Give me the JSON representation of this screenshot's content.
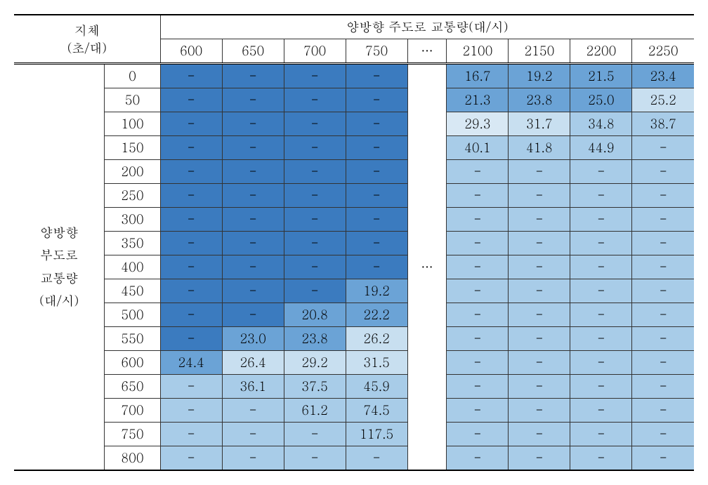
{
  "header": {
    "delay_label_line1": "지체",
    "delay_label_line2": "(초/대)",
    "main_road_label": "양방향 주도로 교통량(대/시)",
    "columns": [
      "600",
      "650",
      "700",
      "750",
      "…",
      "2100",
      "2150",
      "2200",
      "2250"
    ]
  },
  "side_label": {
    "line1": "양방향",
    "line2": "부도로",
    "line3": "교통량",
    "line4": "(대/시)"
  },
  "ellipsis": "…",
  "row_labels": [
    "0",
    "50",
    "100",
    "150",
    "200",
    "250",
    "300",
    "350",
    "400",
    "450",
    "500",
    "550",
    "600",
    "650",
    "700",
    "750",
    "800"
  ],
  "colors": {
    "dark_blue": "#3b7bbf",
    "mid_blue": "#6ba3d6",
    "light_blue": "#a8cce8",
    "lighter_blue": "#c8dff0",
    "pale_blue": "#d8e8f4",
    "very_light": "#e8f0f8",
    "white": "#ffffff"
  },
  "cells": [
    [
      {
        "v": "-",
        "c": "#3b7bbf"
      },
      {
        "v": "-",
        "c": "#3b7bbf"
      },
      {
        "v": "-",
        "c": "#3b7bbf"
      },
      {
        "v": "-",
        "c": "#3b7bbf"
      },
      {
        "v": "16.7",
        "c": "#6ba3d6"
      },
      {
        "v": "19.2",
        "c": "#6ba3d6"
      },
      {
        "v": "21.5",
        "c": "#6ba3d6"
      },
      {
        "v": "23.4",
        "c": "#6ba3d6"
      }
    ],
    [
      {
        "v": "-",
        "c": "#3b7bbf"
      },
      {
        "v": "-",
        "c": "#3b7bbf"
      },
      {
        "v": "-",
        "c": "#3b7bbf"
      },
      {
        "v": "-",
        "c": "#3b7bbf"
      },
      {
        "v": "21.3",
        "c": "#6ba3d6"
      },
      {
        "v": "23.8",
        "c": "#6ba3d6"
      },
      {
        "v": "25.0",
        "c": "#6ba3d6"
      },
      {
        "v": "25.2",
        "c": "#c8dff0"
      }
    ],
    [
      {
        "v": "-",
        "c": "#3b7bbf"
      },
      {
        "v": "-",
        "c": "#3b7bbf"
      },
      {
        "v": "-",
        "c": "#3b7bbf"
      },
      {
        "v": "-",
        "c": "#3b7bbf"
      },
      {
        "v": "29.3",
        "c": "#d8e8f4"
      },
      {
        "v": "31.7",
        "c": "#c8dff0"
      },
      {
        "v": "34.8",
        "c": "#a8cce8"
      },
      {
        "v": "38.7",
        "c": "#a8cce8"
      }
    ],
    [
      {
        "v": "-",
        "c": "#3b7bbf"
      },
      {
        "v": "-",
        "c": "#3b7bbf"
      },
      {
        "v": "-",
        "c": "#3b7bbf"
      },
      {
        "v": "-",
        "c": "#3b7bbf"
      },
      {
        "v": "40.1",
        "c": "#a8cce8"
      },
      {
        "v": "41.8",
        "c": "#a8cce8"
      },
      {
        "v": "44.9",
        "c": "#a8cce8"
      },
      {
        "v": "-",
        "c": "#a8cce8"
      }
    ],
    [
      {
        "v": "-",
        "c": "#3b7bbf"
      },
      {
        "v": "-",
        "c": "#3b7bbf"
      },
      {
        "v": "-",
        "c": "#3b7bbf"
      },
      {
        "v": "-",
        "c": "#3b7bbf"
      },
      {
        "v": "-",
        "c": "#a8cce8"
      },
      {
        "v": "-",
        "c": "#a8cce8"
      },
      {
        "v": "-",
        "c": "#a8cce8"
      },
      {
        "v": "-",
        "c": "#a8cce8"
      }
    ],
    [
      {
        "v": "-",
        "c": "#3b7bbf"
      },
      {
        "v": "-",
        "c": "#3b7bbf"
      },
      {
        "v": "-",
        "c": "#3b7bbf"
      },
      {
        "v": "-",
        "c": "#3b7bbf"
      },
      {
        "v": "-",
        "c": "#a8cce8"
      },
      {
        "v": "-",
        "c": "#a8cce8"
      },
      {
        "v": "-",
        "c": "#a8cce8"
      },
      {
        "v": "-",
        "c": "#a8cce8"
      }
    ],
    [
      {
        "v": "-",
        "c": "#3b7bbf"
      },
      {
        "v": "-",
        "c": "#3b7bbf"
      },
      {
        "v": "-",
        "c": "#3b7bbf"
      },
      {
        "v": "-",
        "c": "#3b7bbf"
      },
      {
        "v": "-",
        "c": "#a8cce8"
      },
      {
        "v": "-",
        "c": "#a8cce8"
      },
      {
        "v": "-",
        "c": "#a8cce8"
      },
      {
        "v": "-",
        "c": "#a8cce8"
      }
    ],
    [
      {
        "v": "-",
        "c": "#3b7bbf"
      },
      {
        "v": "-",
        "c": "#3b7bbf"
      },
      {
        "v": "-",
        "c": "#3b7bbf"
      },
      {
        "v": "-",
        "c": "#3b7bbf"
      },
      {
        "v": "-",
        "c": "#a8cce8"
      },
      {
        "v": "-",
        "c": "#a8cce8"
      },
      {
        "v": "-",
        "c": "#a8cce8"
      },
      {
        "v": "-",
        "c": "#a8cce8"
      }
    ],
    [
      {
        "v": "-",
        "c": "#3b7bbf"
      },
      {
        "v": "-",
        "c": "#3b7bbf"
      },
      {
        "v": "-",
        "c": "#3b7bbf"
      },
      {
        "v": "-",
        "c": "#3b7bbf"
      },
      {
        "v": "-",
        "c": "#a8cce8"
      },
      {
        "v": "-",
        "c": "#a8cce8"
      },
      {
        "v": "-",
        "c": "#a8cce8"
      },
      {
        "v": "-",
        "c": "#a8cce8"
      }
    ],
    [
      {
        "v": "-",
        "c": "#3b7bbf"
      },
      {
        "v": "-",
        "c": "#3b7bbf"
      },
      {
        "v": "-",
        "c": "#3b7bbf"
      },
      {
        "v": "19.2",
        "c": "#6ba3d6"
      },
      {
        "v": "-",
        "c": "#a8cce8"
      },
      {
        "v": "-",
        "c": "#a8cce8"
      },
      {
        "v": "-",
        "c": "#a8cce8"
      },
      {
        "v": "-",
        "c": "#a8cce8"
      }
    ],
    [
      {
        "v": "-",
        "c": "#3b7bbf"
      },
      {
        "v": "-",
        "c": "#3b7bbf"
      },
      {
        "v": "20.8",
        "c": "#6ba3d6"
      },
      {
        "v": "22.2",
        "c": "#6ba3d6"
      },
      {
        "v": "-",
        "c": "#a8cce8"
      },
      {
        "v": "-",
        "c": "#a8cce8"
      },
      {
        "v": "-",
        "c": "#a8cce8"
      },
      {
        "v": "-",
        "c": "#a8cce8"
      }
    ],
    [
      {
        "v": "-",
        "c": "#3b7bbf"
      },
      {
        "v": "23.0",
        "c": "#6ba3d6"
      },
      {
        "v": "23.8",
        "c": "#6ba3d6"
      },
      {
        "v": "26.2",
        "c": "#c8dff0"
      },
      {
        "v": "-",
        "c": "#a8cce8"
      },
      {
        "v": "-",
        "c": "#a8cce8"
      },
      {
        "v": "-",
        "c": "#a8cce8"
      },
      {
        "v": "-",
        "c": "#a8cce8"
      }
    ],
    [
      {
        "v": "24.4",
        "c": "#6ba3d6"
      },
      {
        "v": "26.4",
        "c": "#c8dff0"
      },
      {
        "v": "29.2",
        "c": "#c8dff0"
      },
      {
        "v": "31.5",
        "c": "#c8dff0"
      },
      {
        "v": "-",
        "c": "#a8cce8"
      },
      {
        "v": "-",
        "c": "#a8cce8"
      },
      {
        "v": "-",
        "c": "#a8cce8"
      },
      {
        "v": "-",
        "c": "#a8cce8"
      }
    ],
    [
      {
        "v": "-",
        "c": "#a8cce8"
      },
      {
        "v": "36.1",
        "c": "#a8cce8"
      },
      {
        "v": "37.5",
        "c": "#a8cce8"
      },
      {
        "v": "45.9",
        "c": "#a8cce8"
      },
      {
        "v": "-",
        "c": "#a8cce8"
      },
      {
        "v": "-",
        "c": "#a8cce8"
      },
      {
        "v": "-",
        "c": "#a8cce8"
      },
      {
        "v": "-",
        "c": "#a8cce8"
      }
    ],
    [
      {
        "v": "-",
        "c": "#a8cce8"
      },
      {
        "v": "-",
        "c": "#a8cce8"
      },
      {
        "v": "61.2",
        "c": "#a8cce8"
      },
      {
        "v": "74.5",
        "c": "#a8cce8"
      },
      {
        "v": "-",
        "c": "#a8cce8"
      },
      {
        "v": "-",
        "c": "#a8cce8"
      },
      {
        "v": "-",
        "c": "#a8cce8"
      },
      {
        "v": "-",
        "c": "#a8cce8"
      }
    ],
    [
      {
        "v": "-",
        "c": "#a8cce8"
      },
      {
        "v": "-",
        "c": "#a8cce8"
      },
      {
        "v": "-",
        "c": "#a8cce8"
      },
      {
        "v": "117.5",
        "c": "#a8cce8"
      },
      {
        "v": "-",
        "c": "#a8cce8"
      },
      {
        "v": "-",
        "c": "#a8cce8"
      },
      {
        "v": "-",
        "c": "#a8cce8"
      },
      {
        "v": "-",
        "c": "#a8cce8"
      }
    ],
    [
      {
        "v": "-",
        "c": "#a8cce8"
      },
      {
        "v": "-",
        "c": "#a8cce8"
      },
      {
        "v": "-",
        "c": "#a8cce8"
      },
      {
        "v": "-",
        "c": "#a8cce8"
      },
      {
        "v": "-",
        "c": "#a8cce8"
      },
      {
        "v": "-",
        "c": "#a8cce8"
      },
      {
        "v": "-",
        "c": "#a8cce8"
      },
      {
        "v": "-",
        "c": "#a8cce8"
      }
    ]
  ]
}
